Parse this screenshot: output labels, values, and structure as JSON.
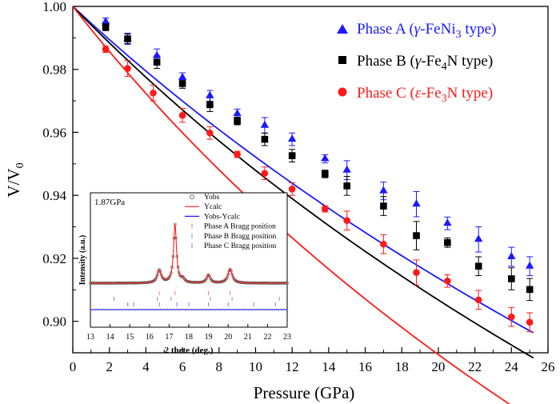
{
  "chart_data": {
    "type": "scatter",
    "xlabel": "Pressure (GPa)",
    "ylabel": "V/V",
    "ylabel_sub": "0",
    "xlim": [
      0,
      26
    ],
    "ylim": [
      0.89,
      1.0
    ],
    "x_ticks": [
      0,
      2,
      4,
      6,
      8,
      10,
      12,
      14,
      16,
      18,
      20,
      22,
      24,
      26
    ],
    "y_ticks": [
      0.9,
      0.92,
      0.94,
      0.96,
      0.98,
      1.0
    ],
    "y_tick_labels": [
      "0.90",
      "0.92",
      "0.94",
      "0.96",
      "0.98",
      "1.00"
    ],
    "legend_position": "top-right",
    "series": [
      {
        "name": "Phase A (γ-FeNi3 type)",
        "legend": {
          "pre": "Phase A (",
          "greek": "γ",
          "mid": "-FeNi",
          "sub": "3",
          "post": " type)"
        },
        "color": "#1a1aff",
        "marker": "triangle",
        "fit": {
          "v0": 1.0,
          "k0": 185.0,
          "kp": 4
        },
        "x": [
          1.8,
          3.0,
          4.6,
          6.0,
          7.5,
          9.0,
          10.5,
          12.0,
          13.8,
          15.0,
          17.0,
          18.8,
          20.5,
          22.2,
          24.0,
          25.0
        ],
        "y": [
          0.9951,
          0.9897,
          0.9843,
          0.9774,
          0.9716,
          0.9659,
          0.9622,
          0.9578,
          0.9516,
          0.948,
          0.9414,
          0.9372,
          0.9311,
          0.926,
          0.9205,
          0.9175
        ],
        "err": [
          0.0012,
          0.0018,
          0.0022,
          0.0015,
          0.0017,
          0.0015,
          0.0025,
          0.002,
          0.0013,
          0.003,
          0.0028,
          0.004,
          0.002,
          0.004,
          0.003,
          0.003
        ]
      },
      {
        "name": "Phase B (γ-Fe4N type)",
        "legend": {
          "pre": "Phase B (",
          "greek": "γ",
          "mid": "-Fe",
          "sub": "4",
          "post": "N type)"
        },
        "color": "#000000",
        "marker": "square",
        "fit": {
          "v0": 1.0,
          "k0": 168.0,
          "kp": 4
        },
        "x": [
          1.8,
          3.0,
          4.6,
          6.0,
          7.5,
          9.0,
          10.5,
          12.0,
          13.8,
          15.0,
          17.0,
          18.8,
          20.5,
          22.2,
          24.0,
          25.0
        ],
        "y": [
          0.9935,
          0.9897,
          0.9823,
          0.9755,
          0.9688,
          0.9636,
          0.9578,
          0.9526,
          0.9468,
          0.943,
          0.9366,
          0.9272,
          0.925,
          0.9175,
          0.9135,
          0.9101
        ],
        "err": [
          0.0012,
          0.0015,
          0.002,
          0.0015,
          0.0022,
          0.0012,
          0.002,
          0.002,
          0.0012,
          0.003,
          0.003,
          0.0045,
          0.0015,
          0.003,
          0.0035,
          0.0035
        ]
      },
      {
        "name": "Phase C (ε-Fe3N type)",
        "legend": {
          "pre": "Phase C (",
          "greek": "ε",
          "mid": "-Fe",
          "sub": "3",
          "post": "N type)"
        },
        "color": "#ff1a1a",
        "marker": "circle",
        "fit": {
          "v0": 1.0,
          "k0": 135.0,
          "kp": 4
        },
        "x": [
          1.8,
          3.0,
          4.4,
          6.0,
          7.5,
          9.0,
          10.5,
          12.0,
          13.8,
          15.0,
          17.0,
          18.8,
          20.5,
          22.2,
          24.0,
          25.0
        ],
        "y": [
          0.9864,
          0.9803,
          0.9725,
          0.9654,
          0.9598,
          0.953,
          0.947,
          0.942,
          0.9357,
          0.932,
          0.9245,
          0.9155,
          0.9128,
          0.9068,
          0.9014,
          0.8997
        ],
        "err": [
          0.001,
          0.0025,
          0.0025,
          0.0022,
          0.002,
          0.001,
          0.002,
          0.002,
          0.001,
          0.003,
          0.003,
          0.004,
          0.002,
          0.003,
          0.003,
          0.003
        ]
      }
    ],
    "inset": {
      "type": "line",
      "pressure_label": "1.87GPa",
      "xlabel": "2 thete (deg.)",
      "ylabel": "Intensity (a.u.)",
      "xlim": [
        13,
        23
      ],
      "x_ticks": [
        13,
        14,
        15,
        16,
        17,
        18,
        19,
        20,
        21,
        22,
        23
      ],
      "legend": [
        {
          "label": "Yobs",
          "style": "open-circle",
          "color": "#555555"
        },
        {
          "label": "Ycalc",
          "style": "line",
          "color": "#ff1a1a"
        },
        {
          "label": "Yobs-Ycalc",
          "style": "line",
          "color": "#1a1aff"
        },
        {
          "label": "Phase A Bragg position",
          "style": "tick",
          "color": "#ff6666"
        },
        {
          "label": "Phase B Bragg position",
          "style": "tick",
          "color": "#888888"
        },
        {
          "label": "Phase C Bragg position",
          "style": "tick",
          "color": "#6666ff"
        }
      ],
      "peaks": [
        {
          "x": 16.5,
          "height": 0.22,
          "width": 0.12
        },
        {
          "x": 17.3,
          "height": 1.0,
          "width": 0.09
        },
        {
          "x": 17.7,
          "height": 0.06,
          "width": 0.1
        },
        {
          "x": 19.0,
          "height": 0.14,
          "width": 0.11
        },
        {
          "x": 20.1,
          "height": 0.24,
          "width": 0.13
        }
      ],
      "bragg_A": [
        16.5,
        17.3,
        19.0,
        20.1
      ],
      "bragg_B": [
        14.2,
        16.4,
        17.1,
        19.1,
        20.2,
        22.6
      ],
      "bragg_C": [
        14.9,
        15.2,
        16.5,
        17.4,
        18.0,
        19.0,
        20.0,
        21.3,
        22.4
      ]
    }
  }
}
